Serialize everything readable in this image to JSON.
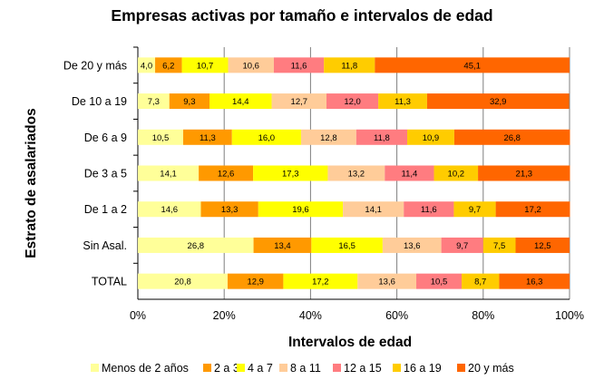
{
  "chart_data": {
    "type": "stacked-bar-horizontal-percent",
    "title": "Empresas activas por tamaño e intervalos de edad",
    "xlabel": "Intervalos de edad",
    "ylabel": "Estrato de asalariados",
    "xlim": [
      0,
      100
    ],
    "x_ticks": [
      "0%",
      "20%",
      "40%",
      "60%",
      "80%",
      "100%"
    ],
    "categories": [
      "De 20 y más",
      "De 10 a 19",
      "De 6 a 9",
      "De 3 a 5",
      "De 1 a 2",
      "Sin Asal.",
      "TOTAL"
    ],
    "series": [
      {
        "name": "Menos de 2 años",
        "color": "#FFFF99",
        "values": [
          4.0,
          7.3,
          10.5,
          14.1,
          14.6,
          26.8,
          20.8
        ]
      },
      {
        "name": "2 a 3",
        "color": "#FF9900",
        "values": [
          6.2,
          9.3,
          11.3,
          12.6,
          13.3,
          13.4,
          12.9
        ]
      },
      {
        "name": "4 a 7",
        "color": "#FFFF00",
        "values": [
          10.7,
          14.4,
          16.0,
          17.3,
          19.6,
          16.5,
          17.2
        ]
      },
      {
        "name": "8 a 11",
        "color": "#FFCC99",
        "values": [
          10.6,
          12.7,
          12.8,
          13.2,
          14.1,
          13.6,
          13.6
        ]
      },
      {
        "name": "12 a 15",
        "color": "#FF7C80",
        "values": [
          11.6,
          12.0,
          11.8,
          11.4,
          11.6,
          9.7,
          10.5
        ]
      },
      {
        "name": "16 a 19",
        "color": "#FFCC00",
        "values": [
          11.8,
          11.3,
          10.9,
          10.2,
          9.7,
          7.5,
          8.7
        ]
      },
      {
        "name": "20 y más",
        "color": "#FF6600",
        "values": [
          45.1,
          32.9,
          26.8,
          21.3,
          17.2,
          12.5,
          16.3
        ]
      }
    ],
    "value_labels": [
      [
        "4,0",
        "6,2",
        "10,7",
        "10,6",
        "11,6",
        "11,8",
        "45,1"
      ],
      [
        "7,3",
        "9,3",
        "14,4",
        "12,7",
        "12,0",
        "11,3",
        "32,9"
      ],
      [
        "10,5",
        "11,3",
        "16,0",
        "12,8",
        "11,8",
        "10,9",
        "26,8"
      ],
      [
        "14,1",
        "12,6",
        "17,3",
        "13,2",
        "11,4",
        "10,2",
        "21,3"
      ],
      [
        "14,6",
        "13,3",
        "19,6",
        "14,1",
        "11,6",
        "9,7",
        "17,2"
      ],
      [
        "26,8",
        "13,4",
        "16,5",
        "13,6",
        "9,7",
        "7,5",
        "12,5"
      ],
      [
        "20,8",
        "12,9",
        "17,2",
        "13,6",
        "10,5",
        "8,7",
        "16,3"
      ]
    ],
    "legend_position": "bottom",
    "grid": true
  }
}
